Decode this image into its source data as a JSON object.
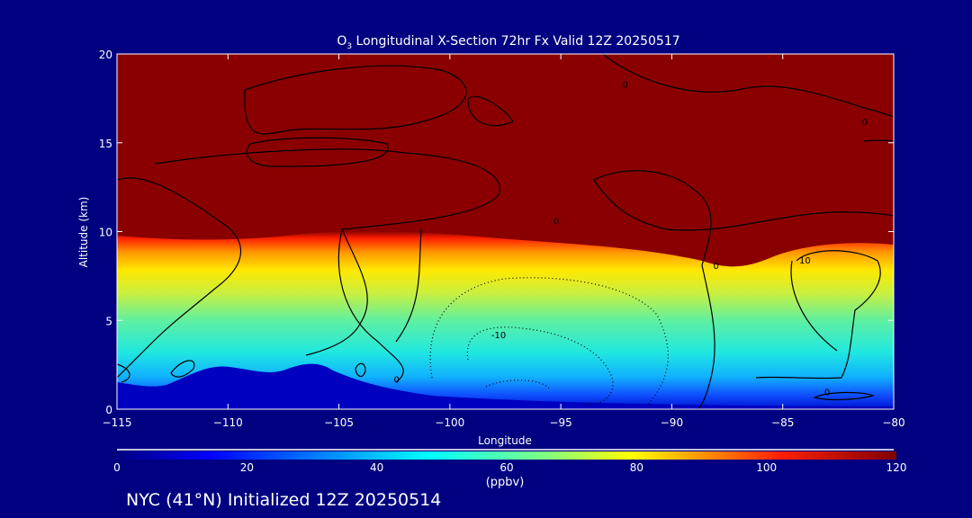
{
  "chart_data": {
    "type": "heatmap",
    "title_prefix": "O",
    "title_sub": "3",
    "title_rest": " Longitudinal X-Section 72hr  Fx Valid 12Z 20250517",
    "xlabel": "Longitude",
    "ylabel": "Altitude (km)",
    "xlim": [
      -115,
      -80
    ],
    "ylim": [
      0,
      20
    ],
    "xticks": [
      -115,
      -110,
      -105,
      -100,
      -95,
      -90,
      -85,
      -80
    ],
    "xtick_labels": [
      "−115",
      "−110",
      "−105",
      "−100",
      "−95",
      "−90",
      "−85",
      "−80"
    ],
    "yticks": [
      0,
      5,
      10,
      15,
      20
    ],
    "ytick_labels": [
      "0",
      "5",
      "10",
      "15",
      "20"
    ],
    "colorbar": {
      "range": [
        0,
        120
      ],
      "ticks": [
        0,
        20,
        40,
        60,
        80,
        100,
        120
      ],
      "tick_labels": [
        "0",
        "20",
        "40",
        "60",
        "80",
        "100",
        "120"
      ],
      "units": "(ppbv)",
      "colors": [
        "#000080",
        "#0000ff",
        "#00ffff",
        "#ffff00",
        "#ff0000",
        "#800000"
      ]
    },
    "contour_labels": [
      {
        "text": "0",
        "lon": -95.2,
        "alt": 10.6
      },
      {
        "text": "0",
        "lon": -92.1,
        "alt": 18.3
      },
      {
        "text": "0",
        "lon": -81.3,
        "alt": 16.2
      },
      {
        "text": "0",
        "lon": -88.0,
        "alt": 8.1
      },
      {
        "text": "10",
        "lon": -84.0,
        "alt": 8.4
      },
      {
        "text": "-10",
        "lon": -97.8,
        "alt": 4.2
      },
      {
        "text": "0",
        "lon": -102.4,
        "alt": 1.7
      },
      {
        "text": "0",
        "lon": -83.0,
        "alt": 1.0
      }
    ],
    "footer": "NYC (41°N) Initialized 12Z 20250514"
  }
}
